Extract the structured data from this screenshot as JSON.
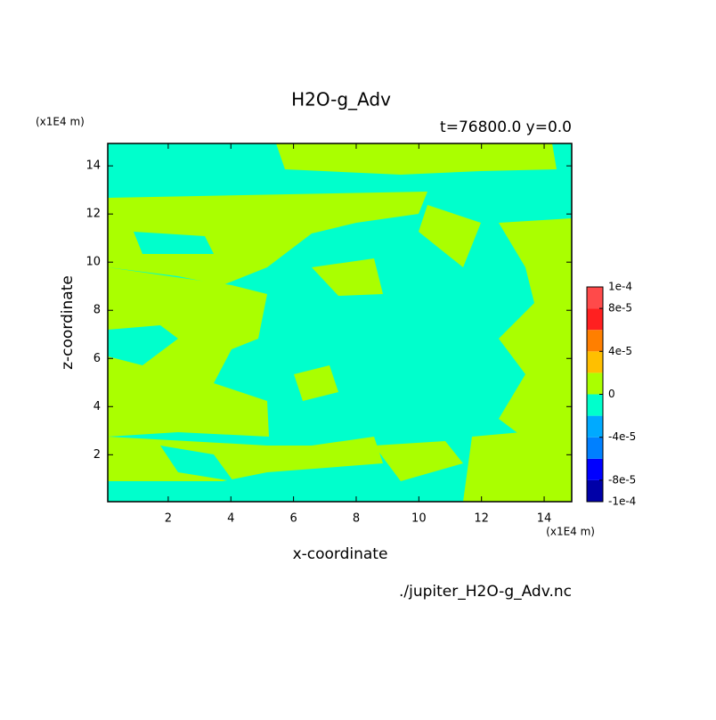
{
  "chart_data": {
    "type": "contour",
    "title": "H2O-g_Adv",
    "subtitle": "t=76800.0 y=0.0",
    "x_label": "x-coordinate",
    "y_label": "z-coordinate",
    "x_unit": "(x1E4 m)",
    "y_unit": "(x1E4 m)",
    "source": "./jupiter_H2O-g_Adv.nc",
    "xlim": [
      0.07,
      14.88
    ],
    "ylim": [
      0.05,
      14.93
    ],
    "xticks": [
      2,
      4,
      6,
      8,
      10,
      12,
      14
    ],
    "yticks": [
      2,
      4,
      6,
      8,
      10,
      12,
      14
    ],
    "colorbar": {
      "levels": [
        -0.0001,
        -8e-05,
        -6e-05,
        -4e-05,
        -2e-05,
        0,
        2e-05,
        4e-05,
        6e-05,
        8e-05,
        0.0001
      ],
      "colors": [
        "#0000a8",
        "#0000ff",
        "#0080ff",
        "#00aaff",
        "#00ffcc",
        "#aaff00",
        "#ffbf00",
        "#ff7f00",
        "#ff2020",
        "#ff4a4a"
      ],
      "ticks": [
        {
          "value": -0.0001,
          "label": "-1e-4"
        },
        {
          "value": -8e-05,
          "label": "-8e-5"
        },
        {
          "value": -4e-05,
          "label": "-4e-5"
        },
        {
          "value": 0,
          "label": "0"
        },
        {
          "value": 4e-05,
          "label": "4e-5"
        },
        {
          "value": 8e-05,
          "label": "8e-5"
        },
        {
          "value": 0.0001,
          "label": "1e-4"
        }
      ]
    }
  }
}
